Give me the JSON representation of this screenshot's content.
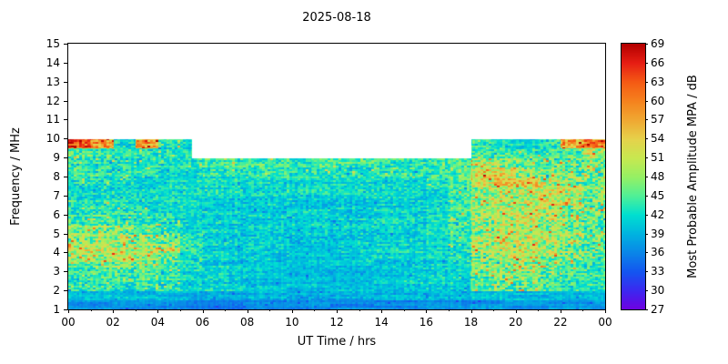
{
  "chart_data": {
    "type": "heatmap",
    "title": "2025-08-18",
    "xlabel": "UT Time / hrs",
    "ylabel": "Frequency / MHz",
    "x_range": [
      0,
      24
    ],
    "x_tick_labels": [
      "00",
      "02",
      "04",
      "06",
      "08",
      "10",
      "12",
      "14",
      "16",
      "18",
      "20",
      "22",
      "00"
    ],
    "y_range": [
      1,
      15
    ],
    "y_ticks": [
      1,
      2,
      3,
      4,
      5,
      6,
      7,
      8,
      9,
      10,
      11,
      12,
      13,
      14,
      15
    ],
    "coverage": {
      "note": "Data present only below max frequency; white above (no data up to 15 MHz).",
      "mid_day_max_freq_mhz": 9,
      "edge_max_freq_mhz": 10,
      "edge_morning_end_hr": 5.5,
      "edge_evening_start_hr": 18
    },
    "colorbar": {
      "label": "Most Probable Amplitude MPA / dB",
      "min": 27,
      "max": 69,
      "ticks": [
        27,
        30,
        33,
        36,
        39,
        42,
        45,
        48,
        51,
        54,
        57,
        60,
        63,
        66,
        69
      ],
      "stops": [
        [
          27,
          "#7000e0"
        ],
        [
          30,
          "#3c28f0"
        ],
        [
          33,
          "#1456f0"
        ],
        [
          36,
          "#0a86e8"
        ],
        [
          39,
          "#00b4e0"
        ],
        [
          42,
          "#00e0d0"
        ],
        [
          45,
          "#50f096"
        ],
        [
          48,
          "#96f064"
        ],
        [
          51,
          "#c8e850"
        ],
        [
          54,
          "#e6d24b"
        ],
        [
          57,
          "#f0a832"
        ],
        [
          60,
          "#f5821e"
        ],
        [
          63,
          "#f55a14"
        ],
        [
          66,
          "#e61e14"
        ],
        [
          69,
          "#b40000"
        ]
      ]
    },
    "grid": {
      "description": "Coarse estimate of Most Probable Amplitude (dB) on 24 hourly columns x 18 rows of 0.5 MHz from 1 to 10 MHz (row 0 = 1.0-1.5 MHz). 0 = no data (masked white). Field is mostly ~41 dB cyan; darker blue band 1-1.5 MHz; warm (48-62 dB) speckled patches 00-05 UT at 3.5-5.5 MHz and 18-24 UT at 2.5-9 MHz; red streaks near 10 MHz at 00-01, 03 and 22-24 UT.",
      "t_bins": 24,
      "f_min": 1,
      "f_max": 10,
      "f_bin_size": 0.5,
      "values_db": [
        [
          37,
          37,
          37,
          37,
          37,
          36,
          36,
          36,
          36,
          36,
          36,
          36,
          36,
          36,
          36,
          36,
          36,
          36,
          37,
          37,
          37,
          37,
          37,
          37
        ],
        [
          40,
          40,
          40,
          40,
          40,
          39,
          39,
          39,
          39,
          39,
          39,
          39,
          39,
          39,
          39,
          39,
          39,
          39,
          40,
          40,
          40,
          40,
          40,
          40
        ],
        [
          43,
          44,
          43,
          44,
          43,
          41,
          41,
          41,
          40,
          40,
          40,
          40,
          40,
          40,
          40,
          41,
          41,
          41,
          45,
          46,
          46,
          45,
          43,
          43
        ],
        [
          44,
          45,
          44,
          45,
          43,
          41,
          41,
          41,
          40,
          40,
          40,
          40,
          40,
          40,
          40,
          41,
          41,
          42,
          46,
          48,
          48,
          46,
          44,
          44
        ],
        [
          45,
          46,
          46,
          46,
          44,
          42,
          41,
          41,
          40,
          40,
          40,
          40,
          40,
          40,
          41,
          41,
          41,
          42,
          47,
          48,
          49,
          47,
          45,
          44
        ],
        [
          49,
          50,
          50,
          49,
          47,
          43,
          41,
          41,
          41,
          40,
          40,
          40,
          40,
          41,
          41,
          41,
          41,
          43,
          48,
          49,
          50,
          48,
          46,
          45
        ],
        [
          50,
          51,
          50,
          49,
          48,
          44,
          41,
          41,
          41,
          41,
          40,
          40,
          41,
          41,
          41,
          41,
          41,
          43,
          49,
          50,
          51,
          49,
          47,
          46
        ],
        [
          48,
          49,
          48,
          47,
          46,
          43,
          41,
          41,
          41,
          41,
          41,
          41,
          41,
          41,
          41,
          41,
          42,
          44,
          49,
          51,
          51,
          50,
          48,
          46
        ],
        [
          46,
          47,
          46,
          45,
          44,
          42,
          41,
          41,
          41,
          41,
          41,
          41,
          41,
          41,
          41,
          41,
          42,
          44,
          48,
          50,
          50,
          49,
          47,
          46
        ],
        [
          44,
          45,
          44,
          43,
          43,
          42,
          41,
          41,
          41,
          41,
          41,
          41,
          41,
          41,
          41,
          41,
          42,
          44,
          48,
          50,
          52,
          49,
          47,
          46
        ],
        [
          43,
          44,
          43,
          43,
          42,
          42,
          41,
          41,
          41,
          41,
          41,
          41,
          41,
          41,
          41,
          41,
          42,
          44,
          48,
          49,
          50,
          49,
          47,
          46
        ],
        [
          43,
          43,
          43,
          42,
          42,
          42,
          41,
          41,
          41,
          41,
          41,
          41,
          41,
          41,
          41,
          41,
          42,
          44,
          48,
          49,
          50,
          52,
          50,
          47
        ],
        [
          42,
          43,
          42,
          42,
          42,
          42,
          42,
          42,
          42,
          42,
          42,
          42,
          42,
          42,
          42,
          42,
          42,
          45,
          49,
          50,
          51,
          52,
          50,
          48
        ],
        [
          43,
          43,
          43,
          42,
          42,
          42,
          42,
          42,
          42,
          42,
          42,
          42,
          42,
          42,
          42,
          42,
          43,
          45,
          52,
          54,
          54,
          50,
          48,
          47
        ],
        [
          43,
          43,
          43,
          43,
          42,
          42,
          43,
          43,
          43,
          43,
          43,
          43,
          43,
          43,
          43,
          43,
          43,
          45,
          52,
          52,
          48,
          47,
          46,
          46
        ],
        [
          43,
          43,
          43,
          43,
          43,
          43,
          43,
          44,
          44,
          44,
          44,
          44,
          44,
          44,
          44,
          43,
          43,
          45,
          50,
          48,
          46,
          46,
          46,
          47
        ],
        [
          45,
          44,
          43,
          43,
          43,
          43,
          0,
          0,
          0,
          0,
          0,
          0,
          0,
          0,
          0,
          0,
          0,
          0,
          44,
          44,
          44,
          44,
          45,
          50
        ],
        [
          62,
          58,
          42,
          58,
          43,
          42,
          0,
          0,
          0,
          0,
          0,
          0,
          0,
          0,
          0,
          0,
          0,
          0,
          43,
          42,
          42,
          43,
          57,
          60
        ]
      ]
    }
  }
}
